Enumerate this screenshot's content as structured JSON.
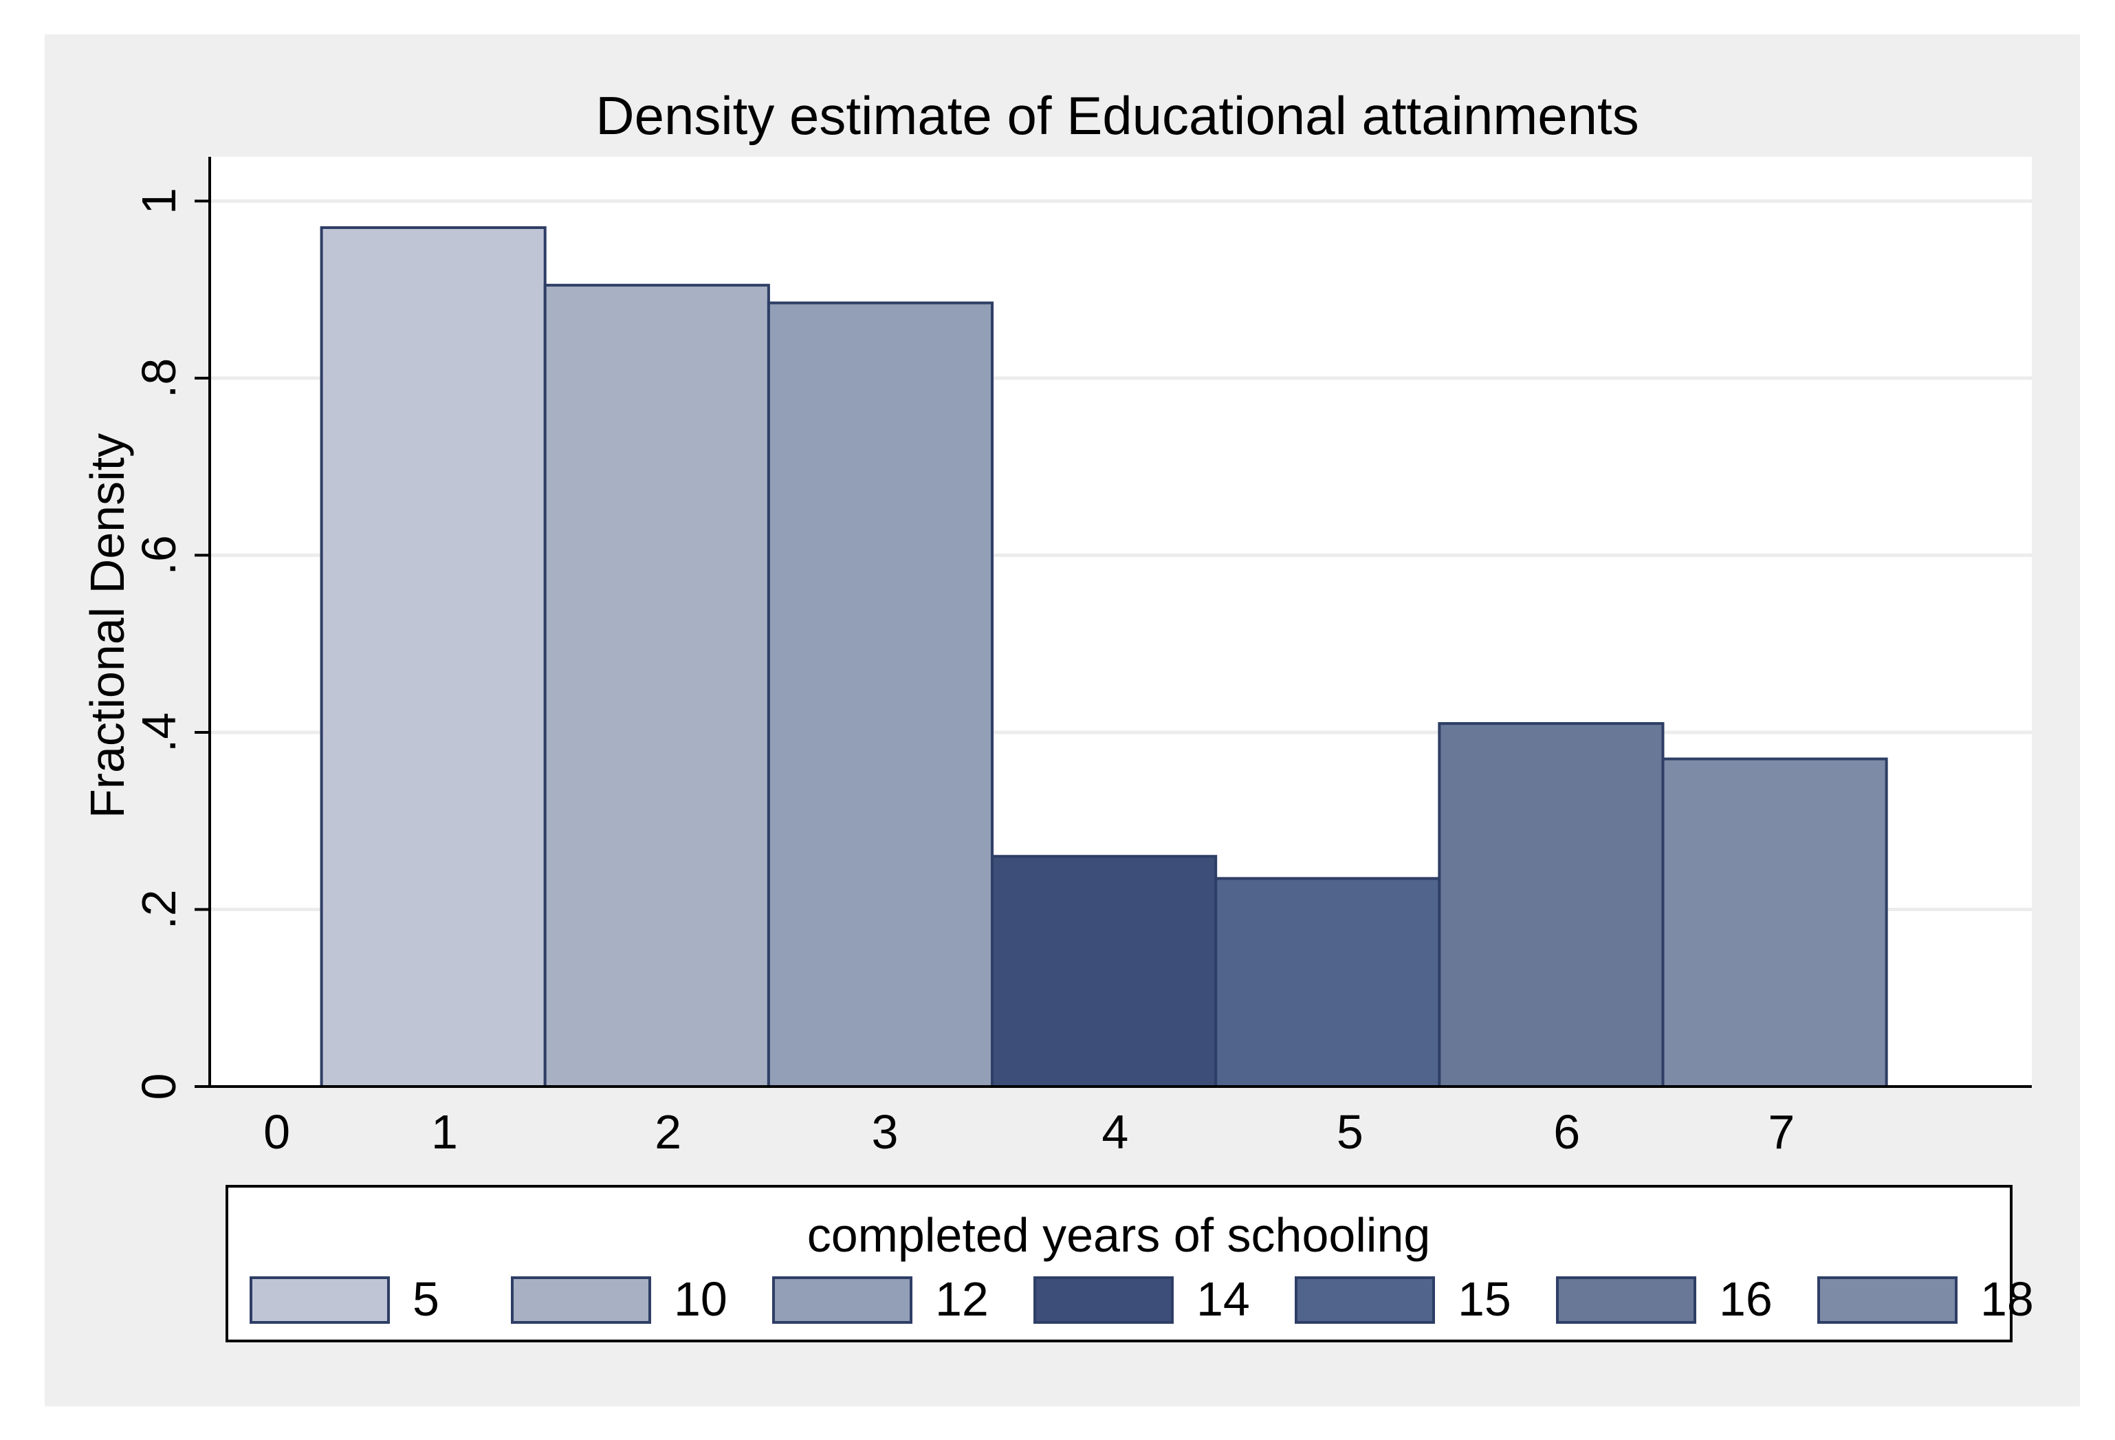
{
  "chart_data": {
    "type": "bar",
    "title": "Density estimate of Educational attainments",
    "ylabel": "Fractional Density",
    "xlabel": "",
    "ylim": [
      0,
      1.05
    ],
    "xlim": [
      -0.3,
      7.85
    ],
    "yticks": [
      {
        "value": 0,
        "label": "0"
      },
      {
        "value": 0.2,
        "label": ".2"
      },
      {
        "value": 0.4,
        "label": ".4"
      },
      {
        "value": 0.6,
        "label": ".6"
      },
      {
        "value": 0.8,
        "label": ".8"
      },
      {
        "value": 1,
        "label": "1"
      }
    ],
    "xticks": [
      {
        "value": 0,
        "label": "0"
      },
      {
        "value": 0.75,
        "label": "1"
      },
      {
        "value": 1.75,
        "label": "2"
      },
      {
        "value": 2.72,
        "label": "3"
      },
      {
        "value": 3.75,
        "label": "4"
      },
      {
        "value": 4.8,
        "label": "5"
      },
      {
        "value": 5.77,
        "label": "6"
      },
      {
        "value": 6.73,
        "label": "7"
      }
    ],
    "grid": true,
    "legend_position": "bottom",
    "legend_title": "completed years of schooling",
    "series": [
      {
        "name": "5",
        "x0": 0.2,
        "x1": 1.2,
        "value": 0.97,
        "color": "#bfc5d4"
      },
      {
        "name": "10",
        "x0": 1.2,
        "x1": 2.2,
        "value": 0.905,
        "color": "#a8b0c3"
      },
      {
        "name": "12",
        "x0": 2.2,
        "x1": 3.2,
        "value": 0.885,
        "color": "#939fb6"
      },
      {
        "name": "14",
        "x0": 3.2,
        "x1": 4.2,
        "value": 0.26,
        "color": "#3d4f78"
      },
      {
        "name": "15",
        "x0": 4.2,
        "x1": 5.2,
        "value": 0.235,
        "color": "#51648b"
      },
      {
        "name": "16",
        "x0": 5.2,
        "x1": 6.2,
        "value": 0.41,
        "color": "#687896"
      },
      {
        "name": "18",
        "x0": 6.2,
        "x1": 7.2,
        "value": 0.37,
        "color": "#7d8ba7"
      }
    ]
  },
  "colors": {
    "outer_background": "#efefef",
    "plot_background": "#ffffff",
    "gridline": "#ececec",
    "bar_outline": "#2e3e66",
    "axis": "#000000"
  }
}
